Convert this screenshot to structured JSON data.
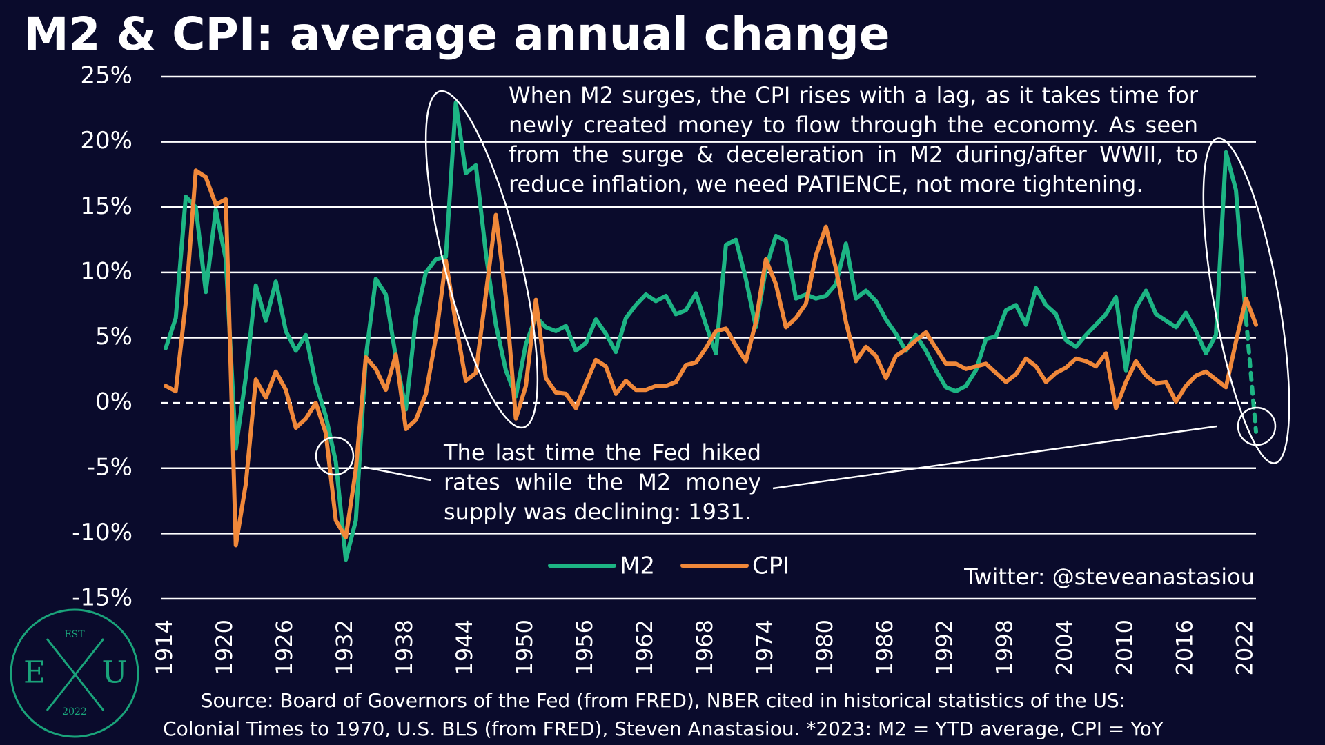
{
  "chart_data": {
    "type": "line",
    "title": "M2 & CPI: average annual change",
    "x": [
      1914,
      1915,
      1916,
      1917,
      1918,
      1919,
      1920,
      1921,
      1922,
      1923,
      1924,
      1925,
      1926,
      1927,
      1928,
      1929,
      1930,
      1931,
      1932,
      1933,
      1934,
      1935,
      1936,
      1937,
      1938,
      1939,
      1940,
      1941,
      1942,
      1943,
      1944,
      1945,
      1946,
      1947,
      1948,
      1949,
      1950,
      1951,
      1952,
      1953,
      1954,
      1955,
      1956,
      1957,
      1958,
      1959,
      1960,
      1961,
      1962,
      1963,
      1964,
      1965,
      1966,
      1967,
      1968,
      1969,
      1970,
      1971,
      1972,
      1973,
      1974,
      1975,
      1976,
      1977,
      1978,
      1979,
      1980,
      1981,
      1982,
      1983,
      1984,
      1985,
      1986,
      1987,
      1988,
      1989,
      1990,
      1991,
      1992,
      1993,
      1994,
      1995,
      1996,
      1997,
      1998,
      1999,
      2000,
      2001,
      2002,
      2003,
      2004,
      2005,
      2006,
      2007,
      2008,
      2009,
      2010,
      2011,
      2012,
      2013,
      2014,
      2015,
      2016,
      2017,
      2018,
      2019,
      2020,
      2021,
      2022,
      2023
    ],
    "series": [
      {
        "name": "M2",
        "color": "#1db584",
        "dashed_tail": true,
        "values": [
          4.2,
          6.5,
          15.8,
          15,
          8.5,
          14.8,
          11,
          -3.5,
          2,
          9,
          6.3,
          9.3,
          5.5,
          4,
          5.2,
          1.5,
          -1,
          -4.5,
          -12,
          -9,
          3.5,
          9.5,
          8.3,
          3.5,
          -0.5,
          6.5,
          10,
          11,
          11.2,
          23,
          17.6,
          18.2,
          11.5,
          6,
          2.5,
          0.5,
          4.5,
          6.6,
          5.8,
          5.5,
          5.9,
          4,
          4.6,
          6.4,
          5.3,
          3.9,
          6.5,
          7.5,
          8.3,
          7.8,
          8.2,
          6.8,
          7.1,
          8.4,
          6,
          3.8,
          12.1,
          12.5,
          9.5,
          5.8,
          10.3,
          12.8,
          12.4,
          8,
          8.3,
          8,
          8.2,
          9.1,
          12.2,
          8,
          8.6,
          7.8,
          6.4,
          5.3,
          4,
          5.2,
          4,
          2.5,
          1.2,
          0.9,
          1.3,
          2.5,
          4.9,
          5.1,
          7.1,
          7.5,
          6,
          8.8,
          7.5,
          6.8,
          4.8,
          4.3,
          5.2,
          6,
          6.8,
          8.1,
          2.5,
          7.3,
          8.6,
          6.8,
          6.3,
          5.8,
          6.9,
          5.5,
          3.8,
          5.2,
          19.2,
          16.3,
          6.5,
          -2.2
        ]
      },
      {
        "name": "CPI",
        "color": "#f0883a",
        "values": [
          1.3,
          0.9,
          7.7,
          17.8,
          17.3,
          15.2,
          15.6,
          -10.9,
          -6.2,
          1.8,
          0.4,
          2.4,
          1,
          -1.9,
          -1.2,
          0,
          -2.3,
          -9,
          -10.3,
          -5.1,
          3.5,
          2.6,
          1,
          3.7,
          -2,
          -1.3,
          0.7,
          5,
          10.9,
          6.1,
          1.7,
          2.3,
          8.3,
          14.4,
          8.1,
          -1.2,
          1.3,
          7.9,
          1.9,
          0.8,
          0.7,
          -0.4,
          1.5,
          3.3,
          2.8,
          0.7,
          1.7,
          1,
          1,
          1.3,
          1.3,
          1.6,
          2.9,
          3.1,
          4.2,
          5.5,
          5.7,
          4.4,
          3.2,
          6.2,
          11,
          9.1,
          5.8,
          6.5,
          7.6,
          11.3,
          13.5,
          10.3,
          6.2,
          3.2,
          4.3,
          3.6,
          1.9,
          3.6,
          4.1,
          4.8,
          5.4,
          4.2,
          3,
          3,
          2.6,
          2.8,
          3,
          2.3,
          1.6,
          2.2,
          3.4,
          2.8,
          1.6,
          2.3,
          2.7,
          3.4,
          3.2,
          2.8,
          3.8,
          -0.4,
          1.6,
          3.2,
          2.1,
          1.5,
          1.6,
          0.1,
          1.3,
          2.1,
          2.4,
          1.8,
          1.2,
          4.7,
          8,
          6
        ]
      }
    ],
    "xlim": [
      1913.5,
      2023
    ],
    "xticks": [
      1914,
      1920,
      1926,
      1932,
      1938,
      1944,
      1950,
      1956,
      1962,
      1968,
      1974,
      1980,
      1986,
      1992,
      1998,
      2004,
      2010,
      2016,
      2022
    ],
    "ylim": [
      -15,
      25
    ],
    "yticks": [
      {
        "value": -15,
        "label": "-15%"
      },
      {
        "value": -10,
        "label": "-10%"
      },
      {
        "value": -5,
        "label": "-5%"
      },
      {
        "value": 0,
        "label": "0%"
      },
      {
        "value": 5,
        "label": "5%"
      },
      {
        "value": 10,
        "label": "10%"
      },
      {
        "value": 15,
        "label": "15%"
      },
      {
        "value": 20,
        "label": "20%"
      },
      {
        "value": 25,
        "label": "25%"
      }
    ],
    "grid": true,
    "annotations": {
      "top": [
        "When M2 surges, the CPI rises with a lag, as it takes time for",
        "newly created money to flow through the economy. As seen",
        "from the surge & deceleration in M2 during/after WWII, to",
        "reduce inflation, we need PATIENCE, not more tightening."
      ],
      "bottom": [
        "The last time the Fed hiked",
        "rates while the M2 money",
        "supply was declining: 1931."
      ]
    },
    "credit": "Twitter: @steveanastasiou",
    "source": [
      "Source: Board of Governors of the Fed (from FRED), NBER cited in historical statistics of the US:",
      "Colonial Times to 1970, U.S. BLS (from FRED), Steven Anastasiou. *2023: M2 = YTD average, CPI = YoY"
    ],
    "logo": {
      "top": "EST",
      "left": "E",
      "right": "U",
      "bottom": "2022"
    }
  }
}
